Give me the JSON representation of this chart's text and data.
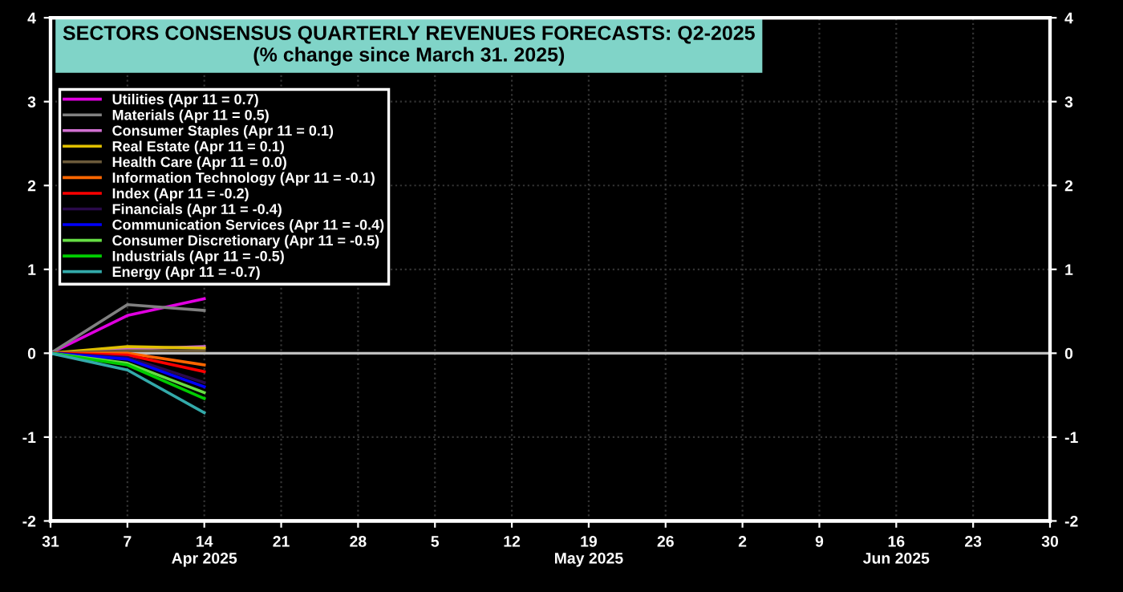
{
  "chart_data": {
    "type": "line",
    "title": "SECTORS CONSENSUS QUARTERLY REVENUES FORECASTS: Q2-2025",
    "subtitle": "(% change since March 31. 2025)",
    "x": [
      "2025-03-31",
      "2025-04-07",
      "2025-04-14"
    ],
    "series": [
      {
        "name": "Utilities (Apr 11 = 0.7)",
        "color": "#e000e0",
        "values": [
          0,
          0.45,
          0.65
        ]
      },
      {
        "name": "Materials (Apr 11 = 0.5)",
        "color": "#808080",
        "values": [
          0,
          0.58,
          0.51
        ]
      },
      {
        "name": "Consumer Staples (Apr 11 = 0.1)",
        "color": "#d070d0",
        "values": [
          0,
          0.05,
          0.08
        ]
      },
      {
        "name": "Real Estate (Apr 11 = 0.1)",
        "color": "#e0c000",
        "values": [
          0,
          0.08,
          0.06
        ]
      },
      {
        "name": "Health Care (Apr 11 = 0.0)",
        "color": "#6b5a3a",
        "values": [
          0,
          0.03,
          0.03
        ]
      },
      {
        "name": "Information Technology (Apr 11 = -0.1)",
        "color": "#ff6600",
        "values": [
          0,
          0.0,
          -0.14
        ]
      },
      {
        "name": "Index (Apr 11 = -0.2)",
        "color": "#ff0000",
        "values": [
          0,
          -0.02,
          -0.22
        ]
      },
      {
        "name": "Financials (Apr 11 = -0.4)",
        "color": "#2a0a4a",
        "values": [
          0,
          -0.05,
          -0.35
        ]
      },
      {
        "name": "Communication Services (Apr 11 = -0.4)",
        "color": "#0000ff",
        "values": [
          0,
          -0.07,
          -0.4
        ]
      },
      {
        "name": "Consumer Discretionary (Apr 11 = -0.5)",
        "color": "#66dd44",
        "values": [
          0,
          -0.12,
          -0.47
        ]
      },
      {
        "name": "Industrials (Apr 11 = -0.5)",
        "color": "#00cc00",
        "values": [
          0,
          -0.14,
          -0.54
        ]
      },
      {
        "name": "Energy (Apr 11 = -0.7)",
        "color": "#33aaaa",
        "values": [
          0,
          -0.2,
          -0.71
        ]
      }
    ],
    "xlim": [
      "2025-03-31",
      "2025-06-30"
    ],
    "xticks": [
      {
        "value": "2025-03-31",
        "label": "31"
      },
      {
        "value": "2025-04-07",
        "label": "7"
      },
      {
        "value": "2025-04-14",
        "label": "14\nApr 2025"
      },
      {
        "value": "2025-04-21",
        "label": "21"
      },
      {
        "value": "2025-04-28",
        "label": "28"
      },
      {
        "value": "2025-05-05",
        "label": "5"
      },
      {
        "value": "2025-05-12",
        "label": "12"
      },
      {
        "value": "2025-05-19",
        "label": "19\nMay 2025"
      },
      {
        "value": "2025-05-26",
        "label": "26"
      },
      {
        "value": "2025-06-02",
        "label": "2"
      },
      {
        "value": "2025-06-09",
        "label": "9"
      },
      {
        "value": "2025-06-16",
        "label": "16\nJun 2025"
      },
      {
        "value": "2025-06-23",
        "label": "23"
      },
      {
        "value": "2025-06-30",
        "label": "30"
      }
    ],
    "ylim": [
      -2,
      4
    ],
    "yticks": [
      -2,
      -1,
      0,
      1,
      2,
      3,
      4
    ],
    "y2lim": [
      -2,
      4
    ],
    "y2ticks": [
      -2,
      -1,
      0,
      1,
      2,
      3,
      4
    ],
    "ref_lines": [
      {
        "axis": "y",
        "value": 0,
        "color": "#c0c0c0"
      }
    ],
    "grid": true,
    "legend": "top left",
    "marker": "none",
    "line_style": "solid"
  }
}
